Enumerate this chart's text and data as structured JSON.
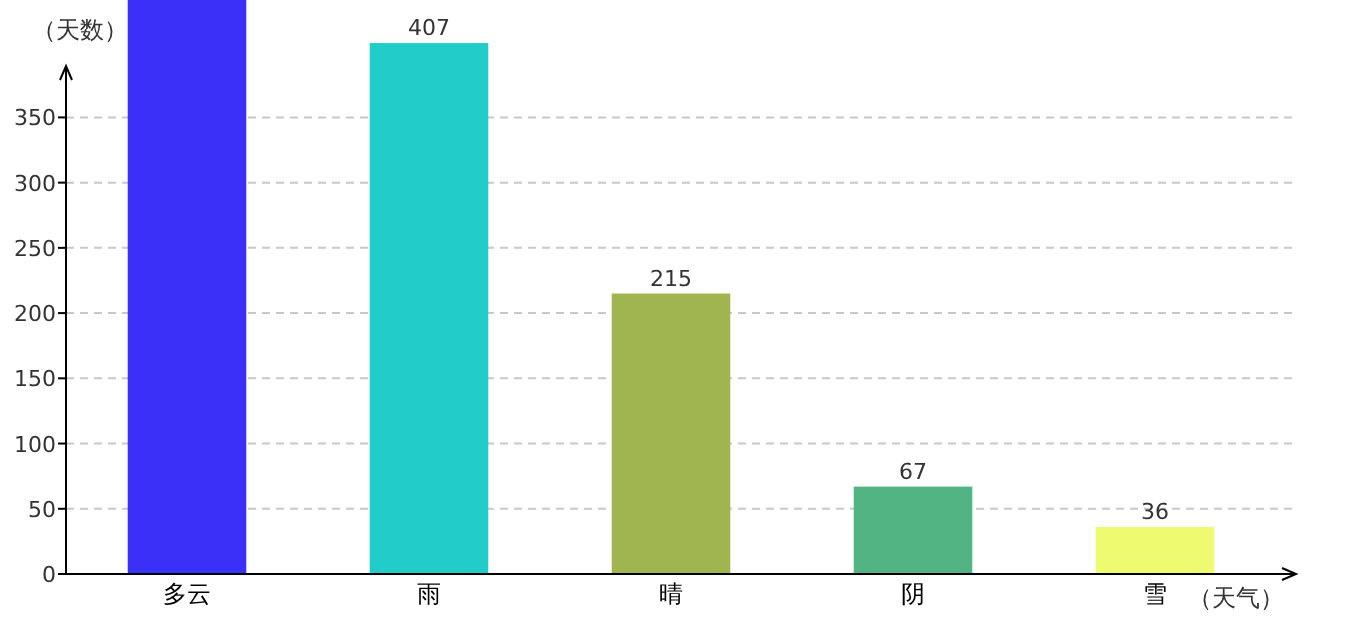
{
  "chart_data": {
    "type": "bar",
    "xlabel": "（天气）",
    "ylabel": "（天数）",
    "categories": [
      "多云",
      "雨",
      "晴",
      "阴",
      "雪"
    ],
    "values": [
      440,
      407,
      215,
      67,
      36
    ],
    "value_labels": [
      null,
      "407",
      "215",
      "67",
      "36"
    ],
    "colors": [
      "#3a30f8",
      "#22ccc8",
      "#a0b550",
      "#52b482",
      "#eefa70"
    ],
    "ylim": [
      0,
      440
    ],
    "yticks": [
      0,
      50,
      100,
      150,
      200,
      250,
      300,
      350
    ],
    "grid": "y"
  }
}
